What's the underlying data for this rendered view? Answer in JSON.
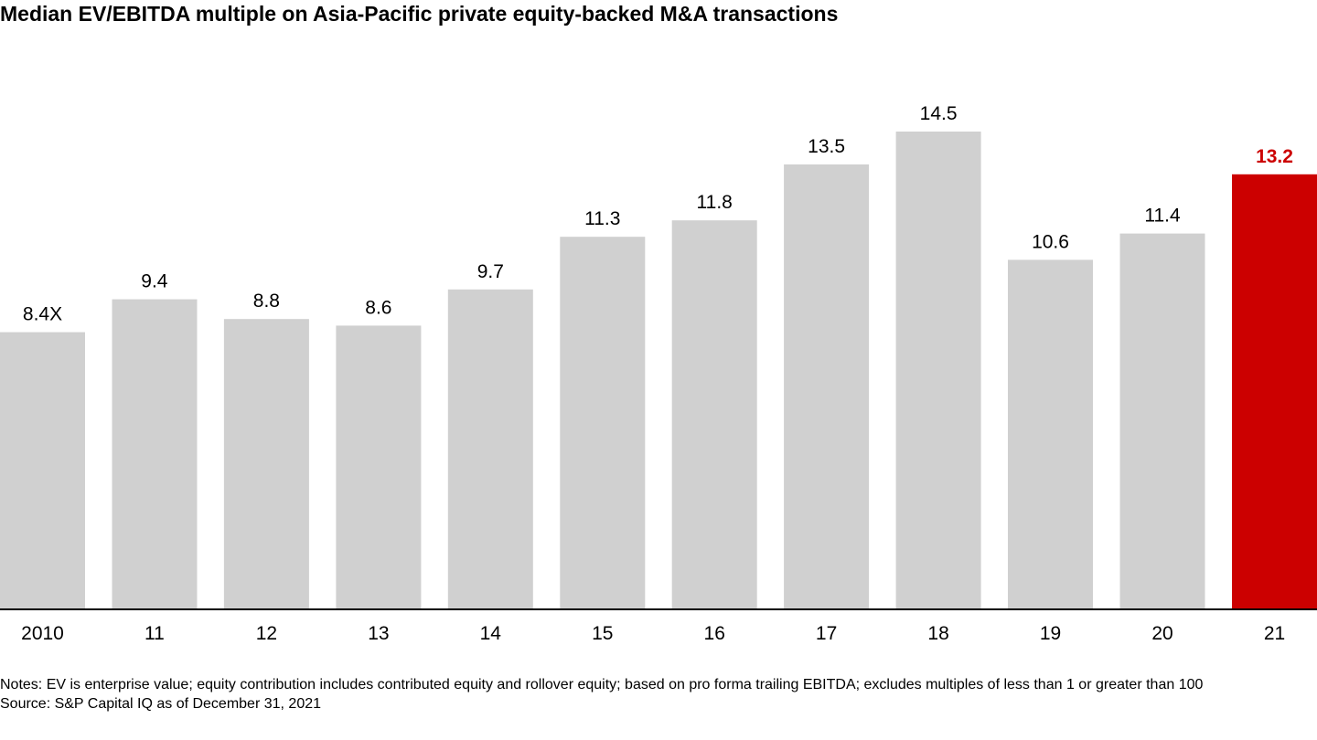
{
  "chart_data": {
    "type": "bar",
    "title": "Median EV/EBITDA multiple on Asia-Pacific private equity-backed M&A transactions",
    "categories": [
      "2010",
      "11",
      "12",
      "13",
      "14",
      "15",
      "16",
      "17",
      "18",
      "19",
      "20",
      "21"
    ],
    "values": [
      8.4,
      9.4,
      8.8,
      8.6,
      9.7,
      11.3,
      11.8,
      13.5,
      14.5,
      10.6,
      11.4,
      13.2
    ],
    "labels": [
      "8.4X",
      "9.4",
      "8.8",
      "8.6",
      "9.7",
      "11.3",
      "11.8",
      "13.5",
      "14.5",
      "10.6",
      "11.4",
      "13.2"
    ],
    "highlight_index": 11,
    "colors": {
      "bar": "#d0d0d0",
      "highlight": "#cc0000",
      "label": "#000000",
      "highlight_label": "#cc0000",
      "axis": "#000000"
    },
    "ylim": [
      0,
      14.5
    ],
    "grid": false,
    "legend": "none"
  },
  "notes": {
    "line": "Notes: EV is enterprise value; equity contribution includes contributed equity and rollover equity; based on pro forma trailing EBITDA; excludes multiples of less than 1 or greater than 100",
    "source": "Source: S&P Capital IQ as of December 31, 2021"
  }
}
